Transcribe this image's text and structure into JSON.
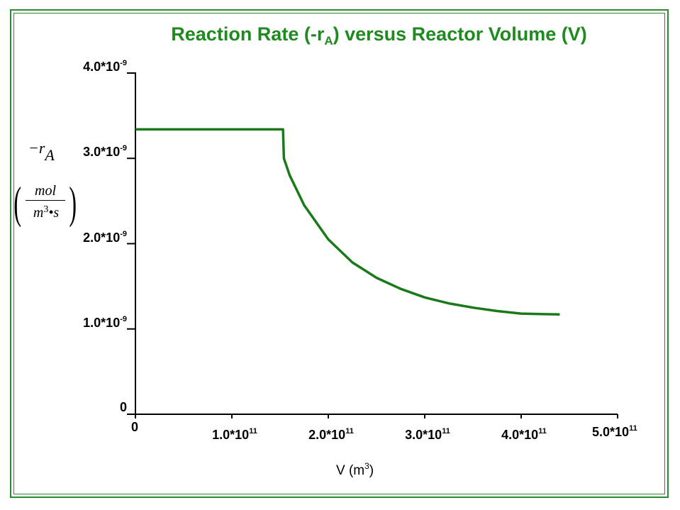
{
  "chart_data": {
    "type": "line",
    "title": {
      "prefix": "Reaction Rate (-r",
      "subscript": "A",
      "suffix": ") versus Reactor Volume (V)"
    },
    "ylabel": {
      "numerator_symbol": "−r",
      "subscript": "A",
      "units_numerator": "mol",
      "units_denominator_base": "m",
      "units_denominator_exp": "3",
      "units_denominator_rest": "•s"
    },
    "xlabel": {
      "base": "V (m",
      "exp": "3",
      "close": ")"
    },
    "x_range": [
      0,
      500000000000
    ],
    "y_range": [
      0,
      4e-09
    ],
    "y_ticks": [
      {
        "value": 0,
        "label": "0",
        "exp": ""
      },
      {
        "value": 1e-09,
        "label": "1.0*10",
        "exp": "-9"
      },
      {
        "value": 2e-09,
        "label": "2.0*10",
        "exp": "-9"
      },
      {
        "value": 3e-09,
        "label": "3.0*10",
        "exp": "-9"
      },
      {
        "value": 4e-09,
        "label": "4.0*10",
        "exp": "-9"
      }
    ],
    "x_ticks": [
      {
        "value": 0,
        "label": "0",
        "exp": ""
      },
      {
        "value": 100000000000,
        "label": "1.0*10",
        "exp": "11"
      },
      {
        "value": 200000000000,
        "label": "2.0*10",
        "exp": "11"
      },
      {
        "value": 300000000000,
        "label": "3.0*10",
        "exp": "11"
      },
      {
        "value": 400000000000,
        "label": "4.0*10",
        "exp": "11"
      },
      {
        "value": 500000000000,
        "label": "5.0*10",
        "exp": "11"
      }
    ],
    "series": [
      {
        "name": "-rA",
        "color": "#1a7a1a",
        "points": [
          [
            0,
            3.34e-09
          ],
          [
            153000000000,
            3.34e-09
          ],
          [
            154000000000,
            3e-09
          ],
          [
            160000000000,
            2.8e-09
          ],
          [
            175000000000,
            2.45e-09
          ],
          [
            200000000000,
            2.05e-09
          ],
          [
            225000000000,
            1.78e-09
          ],
          [
            250000000000,
            1.6e-09
          ],
          [
            275000000000,
            1.47e-09
          ],
          [
            300000000000,
            1.37e-09
          ],
          [
            325000000000,
            1.3e-09
          ],
          [
            350000000000,
            1.25e-09
          ],
          [
            375000000000,
            1.21e-09
          ],
          [
            400000000000,
            1.18e-09
          ],
          [
            440000000000,
            1.17e-09
          ]
        ]
      }
    ]
  }
}
